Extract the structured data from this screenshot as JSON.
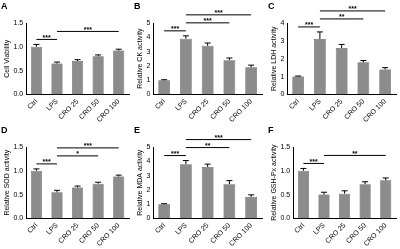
{
  "chart_data": [
    {
      "type": "bar",
      "panel": "A",
      "y_label": "Cell Viability",
      "categories": [
        "Ctrl",
        "LPS",
        "CRO 25",
        "CRO 50",
        "CRO 100"
      ],
      "values": [
        1.0,
        0.65,
        0.7,
        0.8,
        0.92
      ],
      "errors": [
        0.05,
        0.03,
        0.03,
        0.03,
        0.03
      ],
      "color": "#8c8c8c",
      "ylim": [
        0,
        1.5
      ],
      "yticks": [
        {
          "value": 0,
          "label": "0.0"
        },
        {
          "value": 0.5,
          "label": "0.5"
        },
        {
          "value": 1,
          "label": "1.0"
        },
        {
          "value": 1.5,
          "label": "1.5"
        }
      ],
      "grid": false,
      "comparisons": [
        {
          "from": "Ctrl",
          "to": "LPS",
          "label": "***"
        },
        {
          "from": "LPS",
          "to": "CRO 100",
          "label": "***"
        }
      ]
    },
    {
      "type": "bar",
      "panel": "B",
      "y_label": "Relative CK activity",
      "categories": [
        "Ctrl",
        "LPS",
        "CRO 25",
        "CRO 50",
        "CRO 100"
      ],
      "values": [
        1.0,
        3.9,
        3.4,
        2.4,
        1.9
      ],
      "errors": [
        0.03,
        0.2,
        0.2,
        0.15,
        0.15
      ],
      "color": "#8c8c8c",
      "ylim": [
        0,
        5
      ],
      "yticks": [
        0,
        1,
        2,
        3,
        4,
        5
      ],
      "grid": false,
      "comparisons": [
        {
          "from": "Ctrl",
          "to": "LPS",
          "label": "***"
        },
        {
          "from": "LPS",
          "to": "CRO 50",
          "label": "***"
        },
        {
          "from": "LPS",
          "to": "CRO 100",
          "label": "***"
        }
      ]
    },
    {
      "type": "bar",
      "panel": "C",
      "y_label": "Relative LDH activity",
      "categories": [
        "Ctrl",
        "LPS",
        "CRO 25",
        "CRO 50",
        "CRO 100"
      ],
      "values": [
        1.0,
        3.1,
        2.6,
        1.8,
        1.4
      ],
      "errors": [
        0.03,
        0.4,
        0.2,
        0.1,
        0.1
      ],
      "color": "#8c8c8c",
      "ylim": [
        0,
        4
      ],
      "yticks": [
        0,
        1,
        2,
        3,
        4
      ],
      "grid": false,
      "comparisons": [
        {
          "from": "Ctrl",
          "to": "LPS",
          "label": "***"
        },
        {
          "from": "LPS",
          "to": "CRO 50",
          "label": "**"
        },
        {
          "from": "LPS",
          "to": "CRO 100",
          "label": "***"
        }
      ]
    },
    {
      "type": "bar",
      "panel": "D",
      "y_label": "Relative SOD activity",
      "categories": [
        "Ctrl",
        "LPS",
        "CRO 25",
        "CRO 50",
        "CRO 100"
      ],
      "values": [
        1.0,
        0.55,
        0.65,
        0.73,
        0.88
      ],
      "errors": [
        0.04,
        0.04,
        0.03,
        0.03,
        0.03
      ],
      "color": "#8c8c8c",
      "ylim": [
        0,
        1.5
      ],
      "yticks": [
        {
          "value": 0,
          "label": "0.0"
        },
        {
          "value": 0.5,
          "label": "0.5"
        },
        {
          "value": 1,
          "label": "1.0"
        },
        {
          "value": 1.5,
          "label": "1.5"
        }
      ],
      "grid": false,
      "comparisons": [
        {
          "from": "Ctrl",
          "to": "LPS",
          "label": "***"
        },
        {
          "from": "LPS",
          "to": "CRO 50",
          "label": "*"
        },
        {
          "from": "LPS",
          "to": "CRO 100",
          "label": "***"
        }
      ]
    },
    {
      "type": "bar",
      "panel": "E",
      "y_label": "Relative MDA activity",
      "categories": [
        "Ctrl",
        "LPS",
        "CRO 25",
        "CRO 50",
        "CRO 100"
      ],
      "values": [
        1.0,
        3.8,
        3.6,
        2.4,
        1.5
      ],
      "errors": [
        0.03,
        0.25,
        0.2,
        0.25,
        0.15
      ],
      "color": "#8c8c8c",
      "ylim": [
        0,
        5
      ],
      "yticks": [
        0,
        1,
        2,
        3,
        4,
        5
      ],
      "grid": false,
      "comparisons": [
        {
          "from": "Ctrl",
          "to": "LPS",
          "label": "***"
        },
        {
          "from": "LPS",
          "to": "CRO 50",
          "label": "**"
        },
        {
          "from": "LPS",
          "to": "CRO 100",
          "label": "***"
        }
      ]
    },
    {
      "type": "bar",
      "panel": "F",
      "y_label": "Relative GSH-Px activity",
      "categories": [
        "Ctrl",
        "LPS",
        "CRO 25",
        "CRO 50",
        "CRO 100"
      ],
      "values": [
        1.0,
        0.5,
        0.52,
        0.72,
        0.8
      ],
      "errors": [
        0.05,
        0.05,
        0.06,
        0.05,
        0.05
      ],
      "color": "#8c8c8c",
      "ylim": [
        0,
        1.5
      ],
      "yticks": [
        {
          "value": 0,
          "label": "0.0"
        },
        {
          "value": 0.5,
          "label": "0.5"
        },
        {
          "value": 1,
          "label": "1.0"
        },
        {
          "value": 1.5,
          "label": "1.5"
        }
      ],
      "grid": false,
      "comparisons": [
        {
          "from": "Ctrl",
          "to": "LPS",
          "label": "***"
        },
        {
          "from": "LPS",
          "to": "CRO 100",
          "label": "**"
        }
      ]
    }
  ]
}
